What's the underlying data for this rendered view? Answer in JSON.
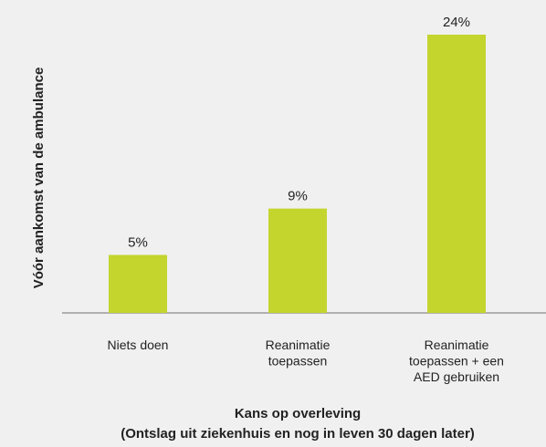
{
  "chart_data": {
    "type": "bar",
    "ylabel": "Vóór aankomst van de ambulance",
    "xlabel": [
      "Kans op overleving",
      "(Ontslag uit ziekenhuis en nog in leven 30 dagen later)"
    ],
    "categories": [
      [
        "Niets doen"
      ],
      [
        "Reanimatie",
        "toepassen"
      ],
      [
        "Reanimatie",
        "toepassen + een",
        "AED gebruiken"
      ]
    ],
    "values": [
      5,
      9,
      24
    ],
    "value_labels": [
      "5%",
      "9%",
      "24%"
    ],
    "color": "#c4d52e",
    "ylim": [
      0,
      24
    ]
  }
}
